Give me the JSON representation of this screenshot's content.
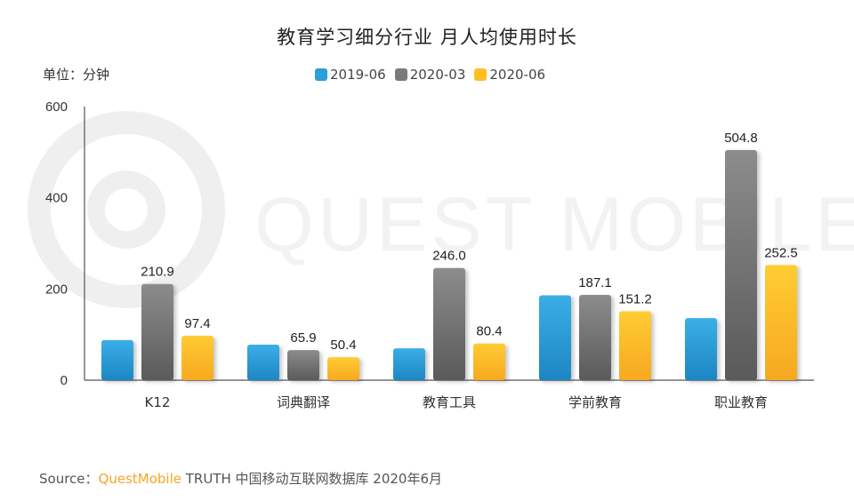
{
  "chart_data": {
    "type": "bar",
    "title": "教育学习细分行业 月人均使用时长",
    "unit_label": "单位：分钟",
    "categories": [
      "K12",
      "词典翻译",
      "教育工具",
      "学前教育",
      "职业教育"
    ],
    "series": [
      {
        "name": "2019-06",
        "values": [
          88,
          78,
          70,
          186,
          136
        ],
        "labels": [
          "",
          "",
          "",
          "",
          ""
        ],
        "color": "#2a9fd8"
      },
      {
        "name": "2020-03",
        "values": [
          210.9,
          65.9,
          246.0,
          187.1,
          504.8
        ],
        "labels": [
          "210.9",
          "65.9",
          "246.0",
          "187.1",
          "504.8"
        ],
        "color": "#7a7a7a"
      },
      {
        "name": "2020-06",
        "values": [
          97.4,
          50.4,
          80.4,
          151.2,
          252.5
        ],
        "labels": [
          "97.4",
          "50.4",
          "80.4",
          "151.2",
          "252.5"
        ],
        "color": "#ffc020"
      }
    ],
    "y_ticks": [
      "0",
      "200",
      "400",
      "600"
    ],
    "ylim": [
      0,
      600
    ],
    "xlabel": "",
    "ylabel": "",
    "grid": false
  },
  "watermark": "QUEST MOBILE",
  "source": {
    "prefix": "Source：",
    "brand": "QuestMobile",
    "suffix": " TRUTH 中国移动互联网数据库 2020年6月"
  }
}
